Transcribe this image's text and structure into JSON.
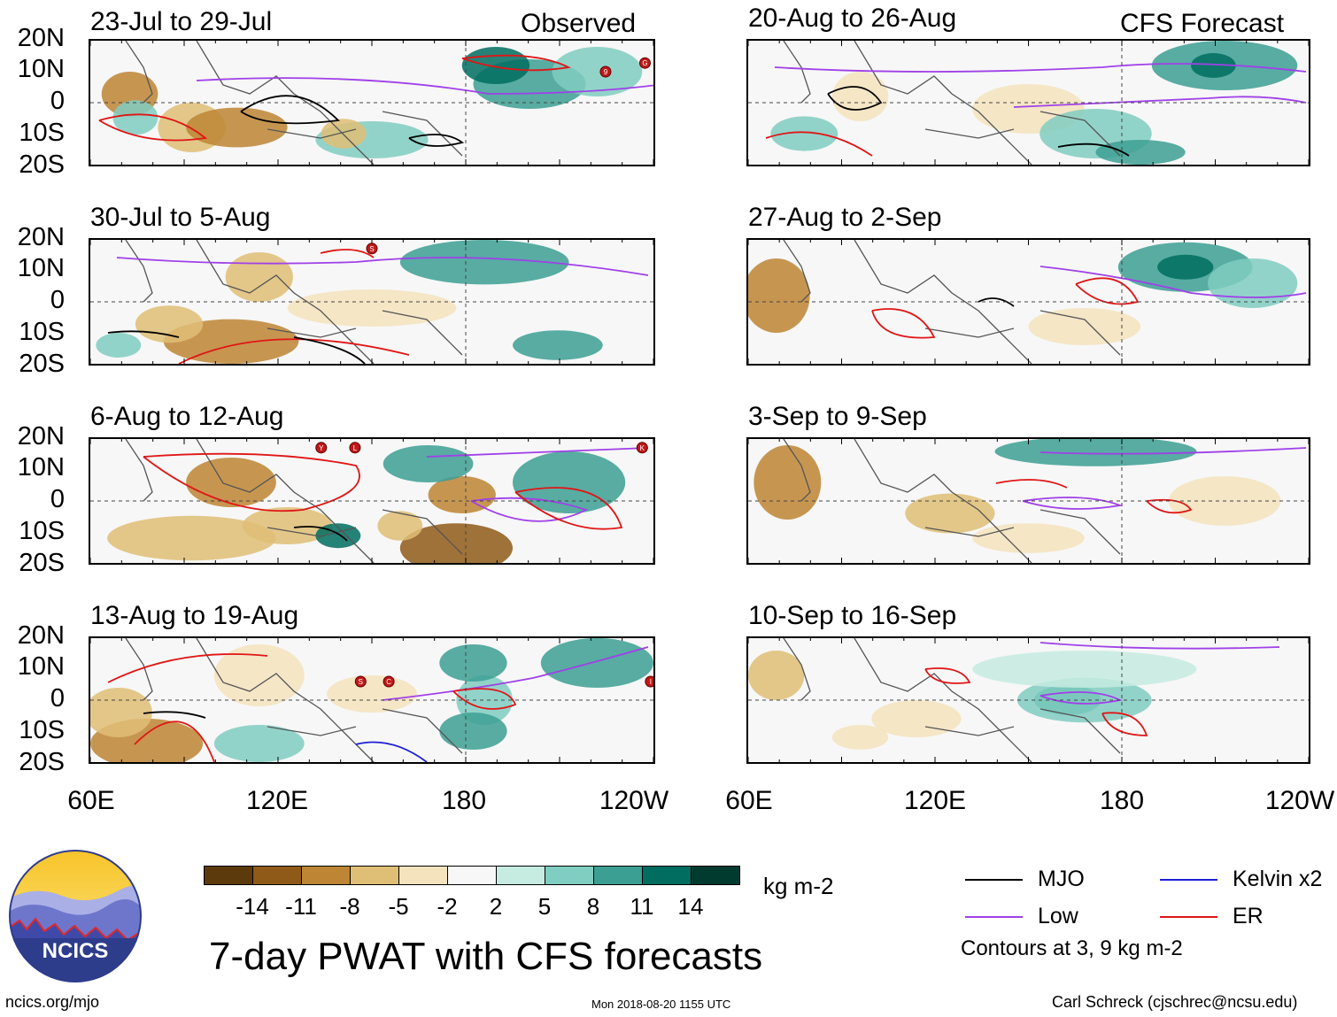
{
  "panels_left_tag": "Observed",
  "panels_right_tag": "CFS Forecast",
  "panels": [
    {
      "title": "23-Jul to 29-Jul"
    },
    {
      "title": "20-Aug to 26-Aug"
    },
    {
      "title": "30-Jul to 5-Aug"
    },
    {
      "title": "27-Aug to 2-Sep"
    },
    {
      "title": "6-Aug to 12-Aug"
    },
    {
      "title": "3-Sep to 9-Sep"
    },
    {
      "title": "13-Aug to 19-Aug"
    },
    {
      "title": "10-Sep to 16-Sep"
    }
  ],
  "lat_labels": [
    "20N",
    "10N",
    "0",
    "10S",
    "20S"
  ],
  "lon_labels": [
    "60E",
    "120E",
    "180",
    "120W"
  ],
  "colorbar": {
    "colors": [
      "#5c3a0b",
      "#8f5a17",
      "#bd8534",
      "#dfbe76",
      "#f4e3bd",
      "#f7f7f7",
      "#c6ebe0",
      "#80cdc1",
      "#3c9f93",
      "#006d60",
      "#013b30"
    ],
    "labels": [
      "-14",
      "-11",
      "-8",
      "-5",
      "-2",
      "2",
      "5",
      "8",
      "11",
      "14"
    ],
    "units": "kg m-2"
  },
  "main_title": "7-day PWAT with CFS forecasts",
  "legend": {
    "items": [
      {
        "label": "MJO",
        "color": "#000000"
      },
      {
        "label": "Kelvin x2",
        "color": "#1f1fd6"
      },
      {
        "label": "Low",
        "color": "#a040e8"
      },
      {
        "label": "ER",
        "color": "#e01616"
      }
    ],
    "note": "Contours at 3, 9 kg m-2"
  },
  "logo_text": "NCICS",
  "footer": {
    "site": "ncics.org/mjo",
    "timestamp": "Mon 2018-08-20 1155 UTC",
    "author": "Carl Schreck (cjschrec@ncsu.edu)"
  },
  "storm_markers": [
    {
      "panel": 0,
      "label": "9"
    },
    {
      "panel": 0,
      "label": "G"
    },
    {
      "panel": 2,
      "label": "S"
    },
    {
      "panel": 4,
      "label": "Y"
    },
    {
      "panel": 4,
      "label": "L"
    },
    {
      "panel": 4,
      "label": "K"
    },
    {
      "panel": 6,
      "label": "S"
    },
    {
      "panel": 6,
      "label": "C"
    },
    {
      "panel": 6,
      "label": "I"
    }
  ]
}
